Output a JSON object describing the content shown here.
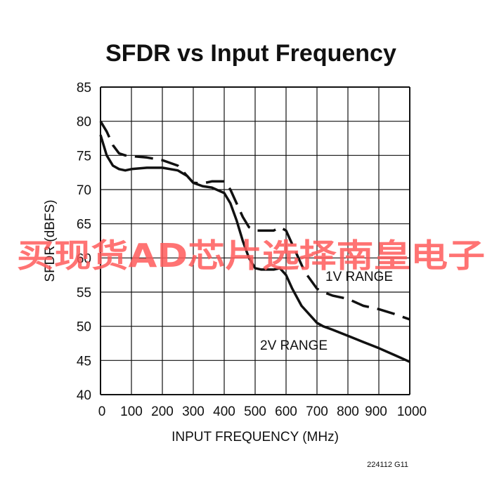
{
  "chart_data": {
    "type": "line",
    "title": "SFDR vs Input Frequency",
    "xlabel": "INPUT FREQUENCY (MHz)",
    "ylabel": "SFDR (dBFS)",
    "xlim": [
      0,
      1000
    ],
    "ylim": [
      40,
      85
    ],
    "x_ticks": [
      "0",
      "100",
      "200",
      "300",
      "400",
      "500",
      "600",
      "700",
      "800",
      "900",
      "1000"
    ],
    "y_ticks": [
      "40",
      "45",
      "50",
      "55",
      "60",
      "65",
      "70",
      "75",
      "80",
      "85"
    ],
    "grid": true,
    "series": [
      {
        "name": "1V RANGE",
        "style": "dashed",
        "x": [
          0,
          20,
          40,
          60,
          80,
          100,
          150,
          200,
          250,
          280,
          300,
          330,
          360,
          400,
          420,
          440,
          460,
          480,
          500,
          520,
          560,
          580,
          600,
          630,
          660,
          700,
          720,
          750,
          800,
          850,
          900,
          950,
          1000
        ],
        "y": [
          80,
          78.5,
          76.5,
          75.3,
          75,
          74.9,
          74.7,
          74.3,
          73.5,
          72,
          71,
          70.9,
          71.2,
          71.2,
          70,
          68,
          66,
          64.5,
          64,
          64,
          64,
          64.5,
          64,
          61,
          58,
          55.5,
          55,
          54.5,
          54,
          53,
          52.5,
          51.8,
          51
        ]
      },
      {
        "name": "2V RANGE",
        "style": "solid",
        "x": [
          0,
          10,
          20,
          40,
          60,
          80,
          100,
          150,
          200,
          250,
          280,
          300,
          330,
          360,
          400,
          420,
          440,
          460,
          480,
          500,
          520,
          560,
          580,
          600,
          620,
          650,
          680,
          700,
          720,
          750,
          800,
          850,
          900,
          950,
          1000
        ],
        "y": [
          78,
          76.5,
          75,
          73.5,
          73,
          72.8,
          73,
          73.2,
          73.2,
          72.8,
          72,
          71,
          70.5,
          70.3,
          69.5,
          68,
          65.5,
          62.5,
          60,
          58.5,
          58.3,
          58.3,
          58.5,
          57.5,
          55.5,
          53,
          51.5,
          50.5,
          50,
          49.5,
          48.6,
          47.7,
          46.8,
          45.8,
          44.8
        ]
      }
    ],
    "annotations": [
      "1V RANGE",
      "2V RANGE"
    ],
    "figure_code": "224112 G11"
  },
  "watermark": "买现货AD芯片选择南皇电子"
}
